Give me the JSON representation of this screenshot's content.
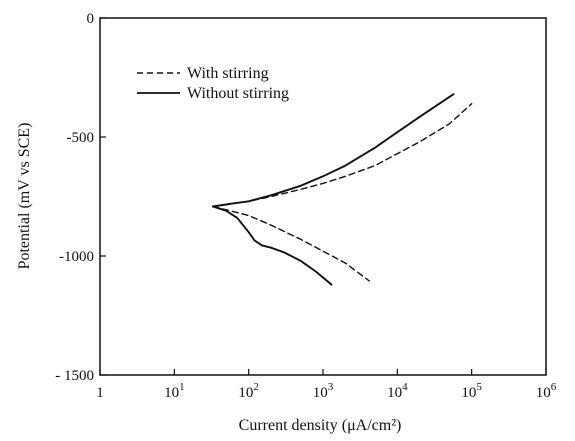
{
  "chart_data": {
    "type": "line",
    "xlabel": "Current density (μA/cm²)",
    "ylabel": "Potential (mV vs SCE)",
    "x_scale": "log",
    "xlim": [
      1,
      1000000
    ],
    "ylim": [
      -1500,
      0
    ],
    "x_ticks": [
      {
        "value": 1,
        "base": "1",
        "exp": ""
      },
      {
        "value": 10,
        "base": "10",
        "exp": "1"
      },
      {
        "value": 100,
        "base": "10",
        "exp": "2"
      },
      {
        "value": 1000,
        "base": "10",
        "exp": "3"
      },
      {
        "value": 10000,
        "base": "10",
        "exp": "4"
      },
      {
        "value": 100000,
        "base": "10",
        "exp": "5"
      },
      {
        "value": 1000000,
        "base": "10",
        "exp": "6"
      }
    ],
    "y_ticks": [
      {
        "value": 0,
        "label": "0"
      },
      {
        "value": -500,
        "label": "-500"
      },
      {
        "value": -1000,
        "label": "-1000"
      },
      {
        "value": -1500,
        "label": "- 1500"
      }
    ],
    "grid": false,
    "legend_position": "top-left",
    "series": [
      {
        "name": "With stirring",
        "style": "dashed",
        "color": "#111111",
        "branches": [
          {
            "x": [
              33,
              60,
              100,
              200,
              500,
              1000,
              2000,
              5000,
              10000,
              20000,
              50000,
              100000
            ],
            "y": [
              -792,
              -780,
              -770,
              -750,
              -720,
              -695,
              -665,
              -620,
              -570,
              -520,
              -445,
              -360
            ]
          },
          {
            "x": [
              33,
              60,
              100,
              200,
              500,
              1000,
              2000,
              4200
            ],
            "y": [
              -792,
              -812,
              -830,
              -870,
              -930,
              -980,
              -1030,
              -1105
            ]
          }
        ]
      },
      {
        "name": "Without stirring",
        "style": "solid",
        "color": "#111111",
        "branches": [
          {
            "x": [
              33,
              60,
              100,
              200,
              500,
              1000,
              2000,
              5000,
              10000,
              20000,
              57000
            ],
            "y": [
              -792,
              -780,
              -770,
              -745,
              -705,
              -665,
              -620,
              -545,
              -480,
              -415,
              -320
            ]
          },
          {
            "x": [
              33,
              50,
              70,
              100,
              120,
              150,
              200,
              300,
              500,
              800,
              1300
            ],
            "y": [
              -792,
              -810,
              -840,
              -900,
              -935,
              -955,
              -965,
              -985,
              -1020,
              -1065,
              -1120
            ]
          }
        ]
      }
    ]
  }
}
